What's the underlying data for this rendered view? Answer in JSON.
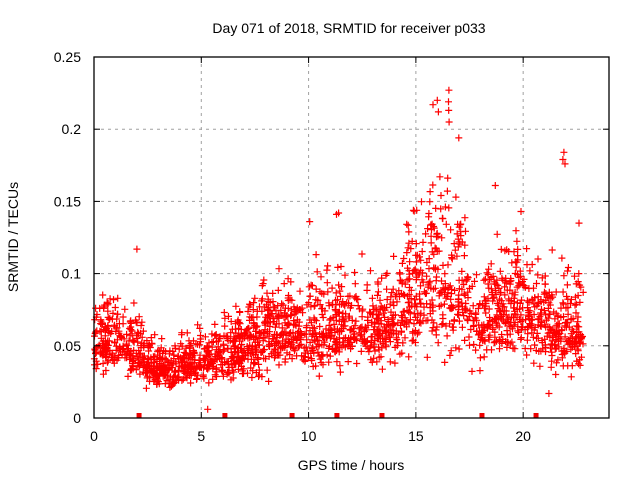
{
  "chart_data": {
    "type": "scatter",
    "title": "Day 071 of 2018, SRMTID for receiver p033",
    "xlabel": "GPS time / hours",
    "ylabel": "SRMTID / TECUs",
    "xlim": [
      0,
      24
    ],
    "ylim": [
      0,
      0.25
    ],
    "xticks": [
      0,
      5,
      10,
      15,
      20
    ],
    "xtick_labels": [
      "0",
      "5",
      "10",
      "15",
      "20"
    ],
    "yticks": [
      0,
      0.05,
      0.1,
      0.15,
      0.2,
      0.25
    ],
    "ytick_labels": [
      "0",
      "0.05",
      "0.1",
      "0.15",
      "0.2",
      "0.25"
    ],
    "grid": true,
    "marker": "plus",
    "color": "#ff0000",
    "series": [
      {
        "name": "SRMTID",
        "x_range": [
          0,
          22.8
        ],
        "approx_point_count": 2200,
        "envelope_hours": [
          0,
          1,
          2,
          3,
          4,
          5,
          6,
          7,
          8,
          9,
          10,
          11,
          12,
          13,
          14,
          15,
          16,
          17,
          18,
          19,
          20,
          21,
          22,
          22.8
        ],
        "envelope_median": [
          0.05,
          0.052,
          0.045,
          0.033,
          0.035,
          0.04,
          0.042,
          0.048,
          0.058,
          0.062,
          0.06,
          0.06,
          0.062,
          0.06,
          0.068,
          0.085,
          0.095,
          0.09,
          0.06,
          0.075,
          0.078,
          0.06,
          0.058,
          0.062
        ],
        "envelope_spread": [
          0.018,
          0.018,
          0.016,
          0.012,
          0.012,
          0.014,
          0.016,
          0.02,
          0.024,
          0.024,
          0.024,
          0.024,
          0.022,
          0.022,
          0.026,
          0.038,
          0.045,
          0.04,
          0.022,
          0.028,
          0.03,
          0.025,
          0.03,
          0.022
        ],
        "notable_points": [
          {
            "x": 2.0,
            "y": 0.117
          },
          {
            "x": 5.3,
            "y": 0.006
          },
          {
            "x": 11.4,
            "y": 0.142
          },
          {
            "x": 11.3,
            "y": 0.141
          },
          {
            "x": 10.05,
            "y": 0.136
          },
          {
            "x": 15.8,
            "y": 0.217
          },
          {
            "x": 16.0,
            "y": 0.22
          },
          {
            "x": 16.05,
            "y": 0.212
          },
          {
            "x": 16.54,
            "y": 0.227
          },
          {
            "x": 16.52,
            "y": 0.219
          },
          {
            "x": 16.53,
            "y": 0.213
          },
          {
            "x": 16.55,
            "y": 0.205
          },
          {
            "x": 17.0,
            "y": 0.194
          },
          {
            "x": 18.7,
            "y": 0.161
          },
          {
            "x": 21.9,
            "y": 0.184
          },
          {
            "x": 21.85,
            "y": 0.179
          },
          {
            "x": 21.95,
            "y": 0.176
          },
          {
            "x": 22.6,
            "y": 0.135
          },
          {
            "x": 19.9,
            "y": 0.143
          },
          {
            "x": 21.2,
            "y": 0.017
          }
        ]
      }
    ],
    "bottom_markers": {
      "color": "#ee0000",
      "x": [
        2.1,
        6.1,
        9.23,
        11.32,
        13.42,
        18.08,
        20.6
      ]
    }
  }
}
